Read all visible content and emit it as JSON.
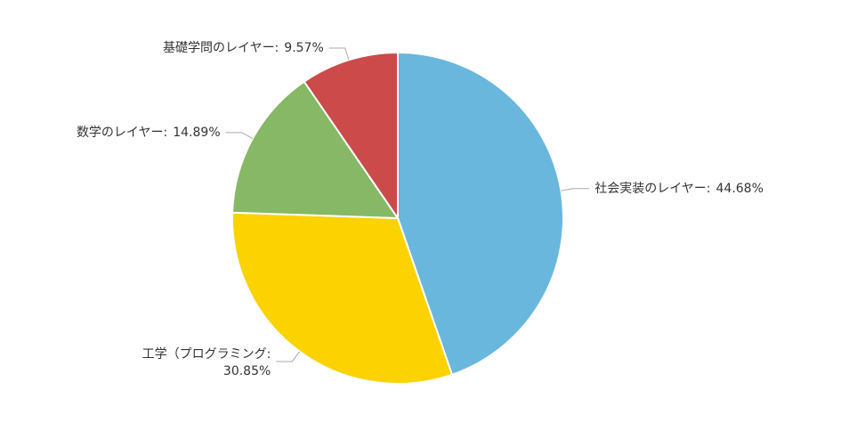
{
  "chart_data": {
    "type": "pie",
    "categories": [
      "社会実装のレイヤー:",
      "工学（プログラミング:",
      "数学のレイヤー:",
      "基礎学問のレイヤー:"
    ],
    "values": [
      44.68,
      30.85,
      14.89,
      9.57
    ],
    "value_labels": [
      "44.68%",
      "30.85%",
      "14.89%",
      "9.57%"
    ],
    "colors": [
      "#6ab7dd",
      "#fcd200",
      "#86b865",
      "#cc4a4a"
    ]
  }
}
